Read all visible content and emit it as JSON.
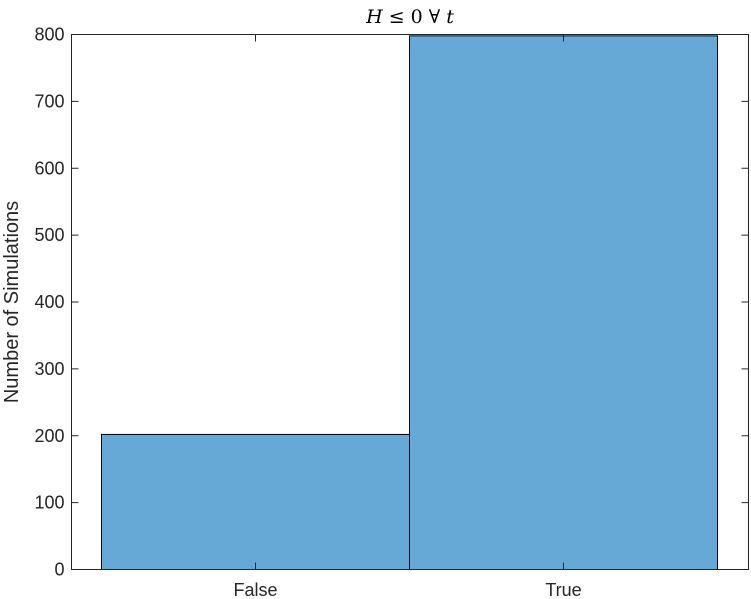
{
  "chart_data": {
    "type": "bar",
    "title": "Ḣ ≤ 0 ∀ t",
    "title_parts": {
      "h": "H",
      "rest": "≤ 0 ∀",
      "t": "t"
    },
    "xlabel": "",
    "ylabel": "Number of Simulations",
    "categories": [
      "False",
      "True"
    ],
    "values": [
      202,
      798
    ],
    "ylim": [
      0,
      800
    ],
    "yticks": [
      "0",
      "100",
      "200",
      "300",
      "400",
      "500",
      "600",
      "700",
      "800"
    ],
    "bar_color": "#66a9d7",
    "bar_edge_color": "#000000",
    "grid": false,
    "legend": "none"
  }
}
